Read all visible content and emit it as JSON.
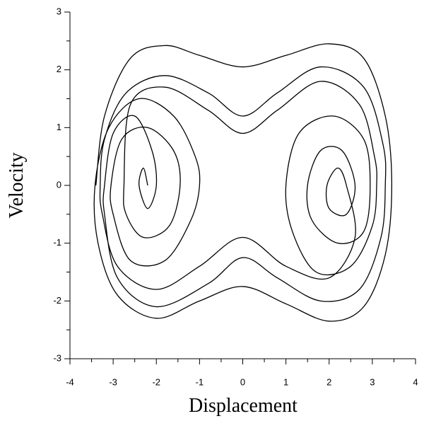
{
  "chart_data": {
    "type": "line",
    "x_label": "Displacement",
    "y_label": "Velocity",
    "color": "#000000",
    "xlim": [
      -4,
      4
    ],
    "ylim": [
      -3,
      3
    ],
    "xticks": [
      -4,
      -3,
      -2,
      -1,
      0,
      1,
      2,
      3,
      4
    ],
    "yticks": [
      -3,
      -2,
      -1,
      0,
      1,
      2,
      3
    ],
    "x": [
      -3.4,
      -3.2,
      -2.6,
      -1.8,
      -1,
      0,
      1,
      2,
      2.8,
      3.3,
      3.45,
      3.3,
      2.8,
      2,
      1,
      0,
      -1,
      -2,
      -2.9,
      -3.35,
      -3.42,
      -3.1,
      -2.4,
      -1.6,
      -1.1,
      -1.0,
      -1.2,
      -1.8,
      -2.6,
      -3.0,
      -3.05,
      -2.8,
      -2.2,
      -1.6,
      -1.45,
      -1.7,
      -2.3,
      -2.7,
      -2.75,
      -2.6,
      -1.8,
      -0.8,
      0,
      0.8,
      1.8,
      2.7,
      3.05,
      3.1,
      3.0,
      2.5,
      1.7,
      1.15,
      1.0,
      1.3,
      2.1,
      2.8,
      2.95,
      2.8,
      2.2,
      1.6,
      1.5,
      1.8,
      2.3,
      2.6,
      2.4,
      2.0,
      1.95,
      2.2,
      2.4,
      2.6,
      2.0,
      1.0,
      0,
      -1,
      -2.0,
      -2.9,
      -3.25,
      -3.3,
      -3.2,
      -2.7,
      -1.8,
      -0.8,
      0,
      0.8,
      1.8,
      2.8,
      3.25,
      3.3,
      3.2,
      2.7,
      1.8,
      0.8,
      0,
      -0.8,
      -2.0,
      -2.9,
      -3.2,
      -3.2,
      -3.0,
      -2.5,
      -2.1,
      -2.0,
      -2.2,
      -2.4,
      -2.3,
      -2.2
    ],
    "y": [
      0,
      1.2,
      2.2,
      2.42,
      2.25,
      2.05,
      2.25,
      2.45,
      2.2,
      1.2,
      0,
      -1.2,
      -2.1,
      -2.35,
      -2.05,
      -1.75,
      -2.0,
      -2.3,
      -1.9,
      -1,
      0,
      1.0,
      1.5,
      1.2,
      0.5,
      0,
      -0.6,
      -1.3,
      -1.3,
      -0.5,
      0,
      0.8,
      1.0,
      0.6,
      0,
      -0.7,
      -0.9,
      -0.5,
      0,
      1.4,
      1.7,
      1.3,
      0.9,
      1.3,
      1.8,
      1.4,
      0.5,
      0,
      -0.7,
      -1.4,
      -1.5,
      -0.8,
      0,
      0.9,
      1.2,
      0.8,
      0,
      -0.8,
      -1.0,
      -0.6,
      0,
      0.6,
      0.6,
      0,
      -0.5,
      -0.4,
      0,
      0.3,
      0,
      -0.9,
      -1.6,
      -1.4,
      -0.9,
      -1.4,
      -1.8,
      -1.4,
      -0.5,
      0,
      0.8,
      1.6,
      1.9,
      1.6,
      1.2,
      1.6,
      2.05,
      1.7,
      0.7,
      0,
      -0.9,
      -1.8,
      -2.0,
      -1.6,
      -1.25,
      -1.7,
      -2.1,
      -1.6,
      -0.5,
      0,
      0.9,
      1.2,
      0.6,
      0,
      -0.4,
      0,
      0.3,
      0
    ]
  }
}
